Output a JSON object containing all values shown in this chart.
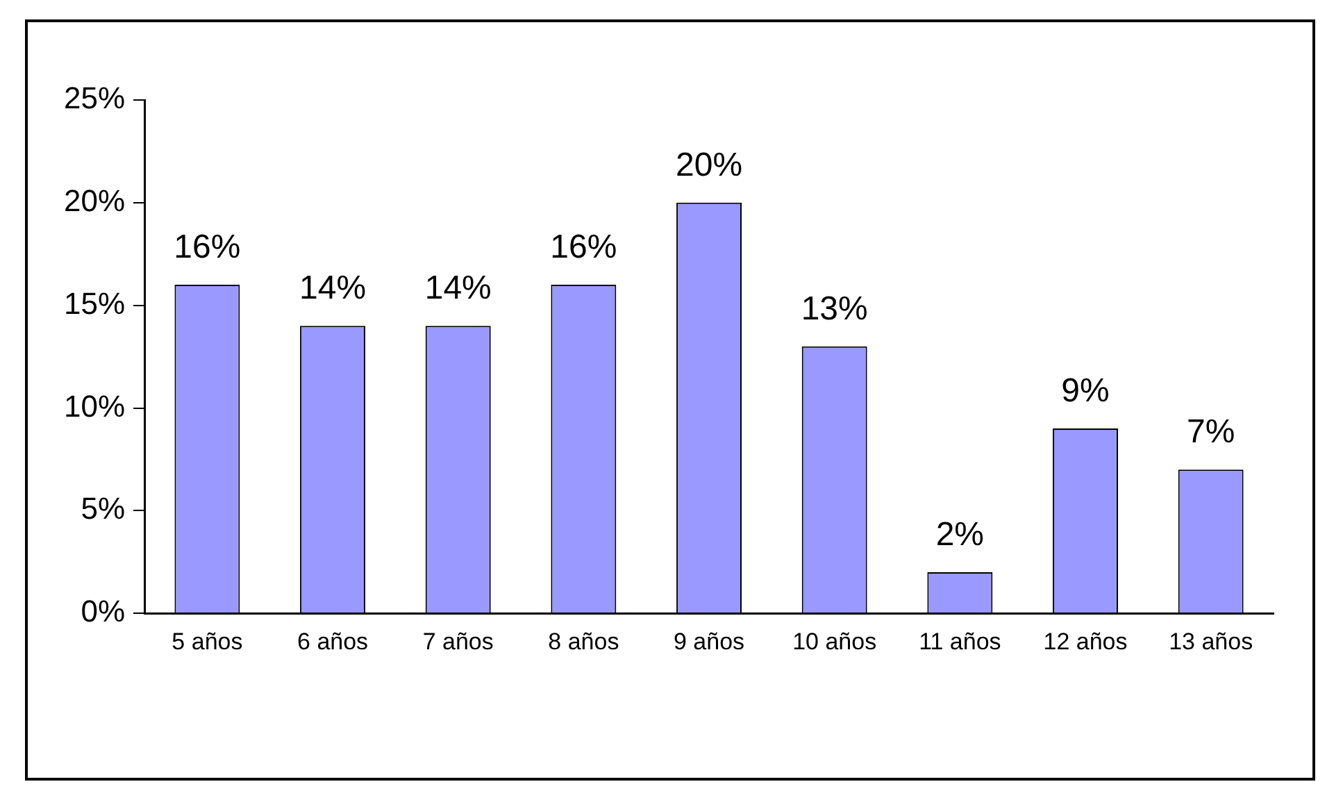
{
  "chart_data": {
    "type": "bar",
    "categories": [
      "5 años",
      "6 años",
      "7 años",
      "8 años",
      "9 años",
      "10 años",
      "11 años",
      "12 años",
      "13 años"
    ],
    "values": [
      16,
      14,
      14,
      16,
      20,
      13,
      2,
      9,
      7
    ],
    "color": "#9999ff",
    "value_labels": [
      "16%",
      "14%",
      "14%",
      "16%",
      "20%",
      "13%",
      "2%",
      "9%",
      "7%"
    ],
    "ylim": [
      0,
      25
    ],
    "yticks": [
      {
        "value": 0,
        "label": "0%"
      },
      {
        "value": 5,
        "label": "5%"
      },
      {
        "value": 10,
        "label": "10%"
      },
      {
        "value": 15,
        "label": "15%"
      },
      {
        "value": 20,
        "label": "20%"
      },
      {
        "value": 25,
        "label": "25%"
      }
    ],
    "grid": false,
    "legend": false
  }
}
